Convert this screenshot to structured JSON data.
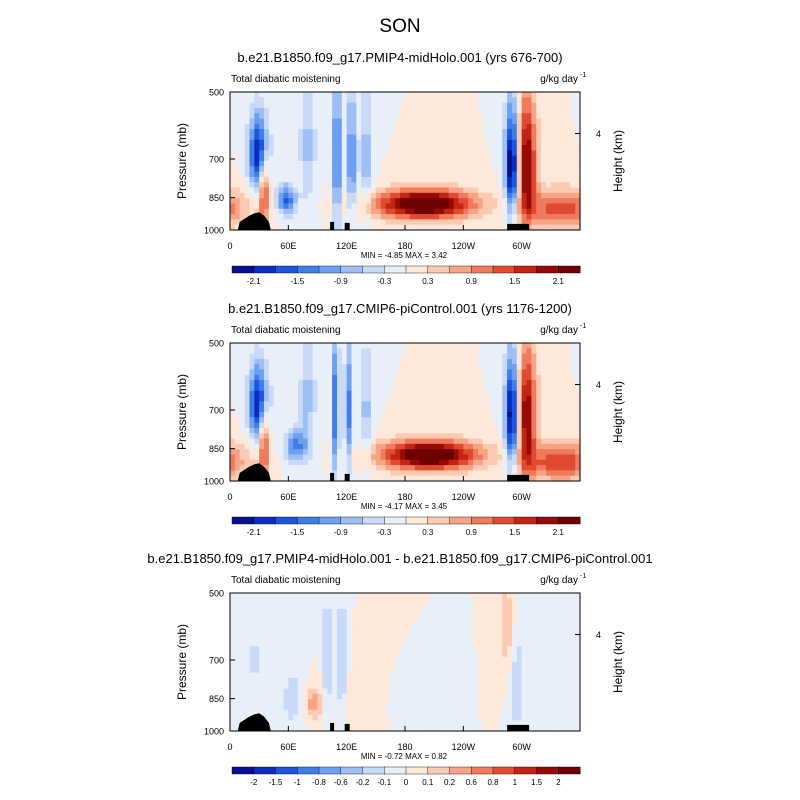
{
  "suptitle": "SON",
  "chart_data": [
    {
      "type": "heatmap",
      "title": "b.e21.B1850.f09_g17.PMIP4-midHolo.001 (yrs 676-700)",
      "left_label": "Total diabatic moistening",
      "right_label": "g/kg day",
      "right_label_sup": "-1",
      "ylabel": "Pressure (mb)",
      "ylabel_right": "Height (km)",
      "x_ticks": [
        "0",
        "60E",
        "120E",
        "180",
        "120W",
        "60W"
      ],
      "y_ticks": [
        "500",
        "700",
        "850",
        "1000"
      ],
      "y_ticks_right": [
        "4"
      ],
      "stats": "MIN =  -4.85  MAX =  3.42",
      "colorbar_labels": [
        "-2.1",
        "-1.5",
        "-0.9",
        "-0.3",
        "0.3",
        "0.9",
        "1.5",
        "2.1"
      ],
      "colorbar_colors": [
        "#08108c",
        "#0a2fc0",
        "#1d56dd",
        "#3e7ee6",
        "#6e9ff0",
        "#9ebff6",
        "#c8daf8",
        "#e8eff9",
        "#fde8da",
        "#fbcab1",
        "#f7a486",
        "#ef7a5c",
        "#e04a31",
        "#c42413",
        "#970b06",
        "#6e0000"
      ],
      "features": [
        {
          "lon": 30,
          "p": 680,
          "a": -2.4,
          "wl": 7,
          "wp": 90
        },
        {
          "lon": 58,
          "p": 860,
          "a": -1.6,
          "wl": 7,
          "wp": 45
        },
        {
          "lon": 35,
          "p": 800,
          "a": 1.6,
          "wl": 4,
          "wp": 120
        },
        {
          "lon": 80,
          "p": 650,
          "a": -0.7,
          "wl": 6,
          "wp": 150
        },
        {
          "lon": 110,
          "p": 700,
          "a": -1.6,
          "wl": 3,
          "wp": 180
        },
        {
          "lon": 125,
          "p": 700,
          "a": -1.4,
          "wl": 3,
          "wp": 170
        },
        {
          "lon": 140,
          "p": 700,
          "a": -0.8,
          "wl": 5,
          "wp": 150
        },
        {
          "lon": 200,
          "p": 880,
          "a": 2.8,
          "wl": 35,
          "wp": 45
        },
        {
          "lon": 290,
          "p": 720,
          "a": -2.6,
          "wl": 5,
          "wp": 140
        },
        {
          "lon": 305,
          "p": 720,
          "a": 2.2,
          "wl": 7,
          "wp": 160
        },
        {
          "lon": 340,
          "p": 900,
          "a": 1.4,
          "wl": 25,
          "wp": 60
        }
      ]
    },
    {
      "type": "heatmap",
      "title": "b.e21.B1850.f09_g17.CMIP6-piControl.001 (yrs 1176-1200)",
      "left_label": "Total diabatic moistening",
      "right_label": "g/kg day",
      "right_label_sup": "-1",
      "ylabel": "Pressure (mb)",
      "ylabel_right": "Height (km)",
      "x_ticks": [
        "0",
        "60E",
        "120E",
        "180",
        "120W",
        "60W"
      ],
      "y_ticks": [
        "500",
        "700",
        "850",
        "1000"
      ],
      "y_ticks_right": [
        "4"
      ],
      "stats": "MIN =  -4.17  MAX =  3.45",
      "colorbar_labels": [
        "-2.1",
        "-1.5",
        "-0.9",
        "-0.3",
        "0.3",
        "0.9",
        "1.5",
        "2.1"
      ],
      "colorbar_colors": [
        "#08108c",
        "#0a2fc0",
        "#1d56dd",
        "#3e7ee6",
        "#6e9ff0",
        "#9ebff6",
        "#c8daf8",
        "#e8eff9",
        "#fde8da",
        "#fbcab1",
        "#f7a486",
        "#ef7a5c",
        "#e04a31",
        "#c42413",
        "#970b06",
        "#6e0000"
      ],
      "features": [
        {
          "lon": 30,
          "p": 680,
          "a": -2.4,
          "wl": 7,
          "wp": 90
        },
        {
          "lon": 68,
          "p": 840,
          "a": -1.3,
          "wl": 8,
          "wp": 50
        },
        {
          "lon": 35,
          "p": 800,
          "a": 1.6,
          "wl": 4,
          "wp": 120
        },
        {
          "lon": 80,
          "p": 650,
          "a": -0.7,
          "wl": 6,
          "wp": 150
        },
        {
          "lon": 108,
          "p": 700,
          "a": -1.5,
          "wl": 3,
          "wp": 180
        },
        {
          "lon": 122,
          "p": 700,
          "a": -1.3,
          "wl": 3,
          "wp": 170
        },
        {
          "lon": 140,
          "p": 700,
          "a": -0.7,
          "wl": 5,
          "wp": 150
        },
        {
          "lon": 205,
          "p": 880,
          "a": 2.8,
          "wl": 35,
          "wp": 45
        },
        {
          "lon": 290,
          "p": 720,
          "a": -2.5,
          "wl": 5,
          "wp": 140
        },
        {
          "lon": 305,
          "p": 720,
          "a": 2.1,
          "wl": 7,
          "wp": 160
        },
        {
          "lon": 340,
          "p": 910,
          "a": 1.5,
          "wl": 25,
          "wp": 60
        }
      ]
    },
    {
      "type": "heatmap",
      "title": "b.e21.B1850.f09_g17.PMIP4-midHolo.001 - b.e21.B1850.f09_g17.CMIP6-piControl.001",
      "left_label": "Total diabatic moistening",
      "right_label": "g/kg day",
      "right_label_sup": "-1",
      "ylabel": "Pressure (mb)",
      "ylabel_right": "Height (km)",
      "x_ticks": [
        "0",
        "60E",
        "120E",
        "180",
        "120W",
        "60W"
      ],
      "y_ticks": [
        "500",
        "700",
        "850",
        "1000"
      ],
      "y_ticks_right": [
        "4"
      ],
      "stats": "MIN =  -0.72  MAX =  0.82",
      "colorbar_labels": [
        "-2",
        "-1.5",
        "-1",
        "-0.8",
        "-0.6",
        "-0.2",
        "-0.1",
        "0",
        "0.1",
        "0.2",
        "0.6",
        "0.8",
        "1",
        "1.5",
        "2"
      ],
      "colorbar_colors": [
        "#08108c",
        "#0a2fc0",
        "#1d56dd",
        "#3e7ee6",
        "#6e9ff0",
        "#9ebff6",
        "#c8daf8",
        "#e8eff9",
        "#fde8da",
        "#fbcab1",
        "#f7a486",
        "#ef7a5c",
        "#e04a31",
        "#c42413",
        "#970b06",
        "#6e0000"
      ],
      "features": [
        {
          "lon": 25,
          "p": 700,
          "a": -0.15,
          "wl": 8,
          "wp": 120
        },
        {
          "lon": 65,
          "p": 850,
          "a": -0.25,
          "wl": 8,
          "wp": 80
        },
        {
          "lon": 85,
          "p": 870,
          "a": 0.35,
          "wl": 7,
          "wp": 50
        },
        {
          "lon": 100,
          "p": 700,
          "a": -0.3,
          "wl": 3,
          "wp": 160
        },
        {
          "lon": 115,
          "p": 700,
          "a": -0.3,
          "wl": 3,
          "wp": 160
        },
        {
          "lon": 150,
          "p": 850,
          "a": 0.15,
          "wl": 15,
          "wp": 80
        },
        {
          "lon": 170,
          "p": 860,
          "a": -0.12,
          "wl": 14,
          "wp": 70
        },
        {
          "lon": 285,
          "p": 600,
          "a": 0.25,
          "wl": 5,
          "wp": 100
        },
        {
          "lon": 295,
          "p": 800,
          "a": -0.25,
          "wl": 5,
          "wp": 150
        }
      ]
    }
  ]
}
